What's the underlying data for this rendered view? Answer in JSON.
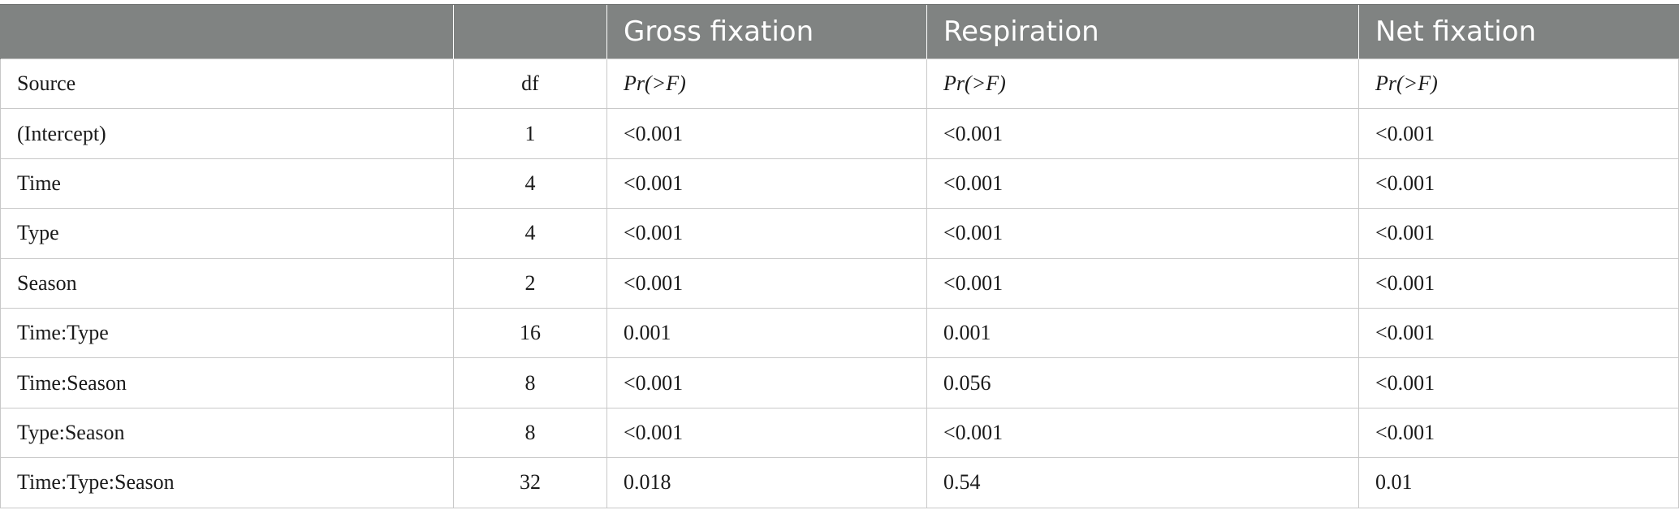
{
  "table": {
    "header": [
      "",
      "",
      "Gross fixation",
      "Respiration",
      "Net fixation"
    ],
    "subheader": [
      "Source",
      "df",
      "Pr(>F)",
      "Pr(>F)",
      "Pr(>F)"
    ],
    "rows": [
      [
        "(Intercept)",
        "1",
        "<0.001",
        "<0.001",
        "<0.001"
      ],
      [
        "Time",
        "4",
        "<0.001",
        "<0.001",
        "<0.001"
      ],
      [
        "Type",
        "4",
        "<0.001",
        "<0.001",
        "<0.001"
      ],
      [
        "Season",
        "2",
        "<0.001",
        "<0.001",
        "<0.001"
      ],
      [
        "Time:Type",
        "16",
        "0.001",
        "0.001",
        "<0.001"
      ],
      [
        "Time:Season",
        "8",
        "<0.001",
        "0.056",
        "<0.001"
      ],
      [
        "Type:Season",
        "8",
        "<0.001",
        "<0.001",
        "<0.001"
      ],
      [
        "Time:Type:Season",
        "32",
        "0.018",
        "0.54",
        "0.01"
      ]
    ]
  },
  "colors": {
    "header_bg": "#808382",
    "header_text": "#ffffff",
    "grid": "#c8c8c8"
  }
}
